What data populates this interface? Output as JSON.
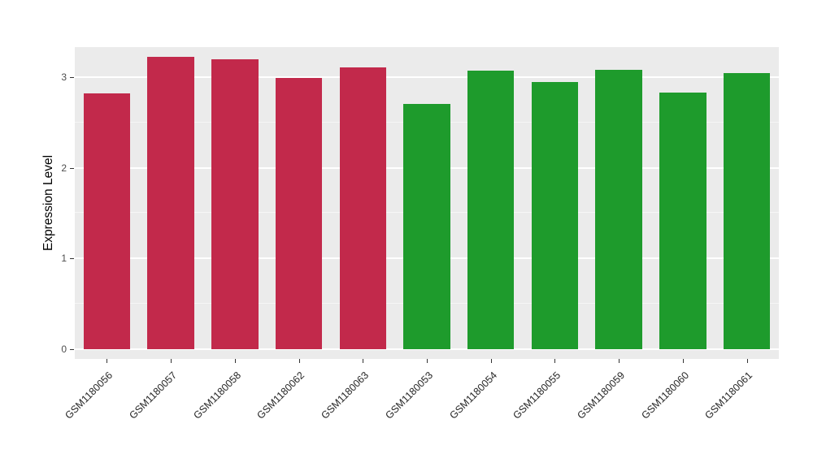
{
  "figure": {
    "background": "#FFFFFF",
    "panel_background": "#EBEBEB",
    "grid_color": "#FFFFFF"
  },
  "axes": {
    "y_title": "Expression Level",
    "y_ticks": [
      "0",
      "1",
      "2",
      "3"
    ],
    "x_title": ""
  },
  "chart_data": {
    "type": "bar",
    "title": "",
    "xlabel": "",
    "ylabel": "Expression Level",
    "categories": [
      "GSM1180056",
      "GSM1180057",
      "GSM1180058",
      "GSM1180062",
      "GSM1180063",
      "GSM1180053",
      "GSM1180054",
      "GSM1180055",
      "GSM1180059",
      "GSM1180060",
      "GSM1180061"
    ],
    "values": [
      2.82,
      3.22,
      3.2,
      2.99,
      3.11,
      2.7,
      3.07,
      2.95,
      3.08,
      2.83,
      3.04
    ],
    "bar_colors": [
      "#C2294B",
      "#C2294B",
      "#C2294B",
      "#C2294B",
      "#C2294B",
      "#1E9B2C",
      "#1E9B2C",
      "#1E9B2C",
      "#1E9B2C",
      "#1E9B2C",
      "#1E9B2C"
    ],
    "group_colors": {
      "red_group": "#C2294B",
      "green_group": "#1E9B2C"
    },
    "ylim": [
      0,
      3.35
    ],
    "yticks": [
      0,
      1,
      2,
      3
    ],
    "yticks_minor": [
      0.5,
      1.5,
      2.5
    ],
    "grid": "major and minor horizontal white gridlines on grey panel",
    "legend": "none",
    "x_label_rotation_deg": 45
  }
}
